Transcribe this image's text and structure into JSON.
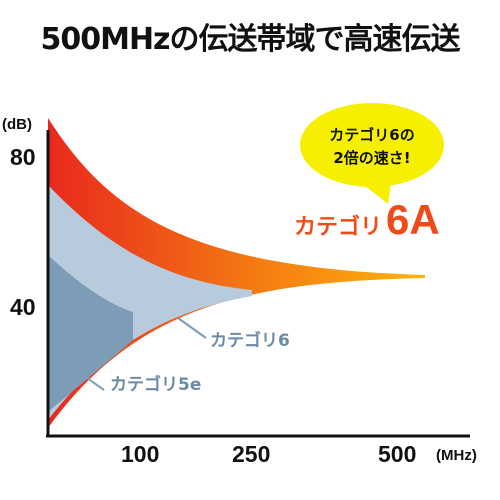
{
  "title": "500MHzの伝送帯域で高速伝送",
  "callout": {
    "line1": "カテゴリ6の",
    "line2": "2倍の速さ!",
    "color": "#f6f000"
  },
  "chart_data": {
    "type": "area",
    "y_unit": "(dB)",
    "x_unit": "(MHz)",
    "y_ticks": [
      "80",
      "40"
    ],
    "x_ticks": [
      "100",
      "250",
      "500"
    ],
    "x_max": 500,
    "series": [
      {
        "name": "カテゴリ6A",
        "label_prefix": "カテゴリ",
        "label_suffix": "6A",
        "max_frequency": 500,
        "color": "#ee4a1a"
      },
      {
        "name": "カテゴリ6",
        "max_frequency": 250,
        "color": "#b7cbdd"
      },
      {
        "name": "カテゴリ5e",
        "max_frequency": 100,
        "color": "#7d9cb8"
      }
    ]
  }
}
